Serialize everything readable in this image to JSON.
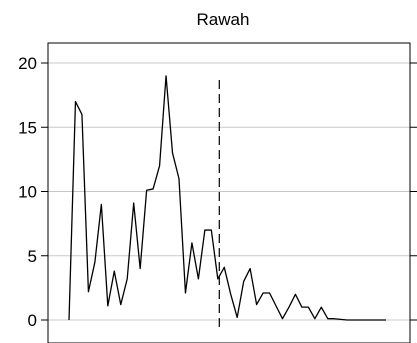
{
  "chart_data": {
    "type": "line",
    "title": "Rawah",
    "xlabel": "",
    "ylabel": "",
    "ylim": [
      -0.5,
      21.5
    ],
    "yticks": [
      0,
      5,
      10,
      15,
      20
    ],
    "grid": true,
    "x": [
      0,
      1,
      2,
      3,
      4,
      5,
      6,
      7,
      8,
      9,
      10,
      11,
      12,
      13,
      14,
      15,
      16,
      17,
      18,
      19,
      20,
      21,
      22,
      23,
      24,
      25,
      26,
      27,
      28,
      29,
      30,
      31,
      32,
      33,
      34,
      35,
      36,
      37,
      38,
      39,
      40,
      41,
      42,
      43,
      44,
      45,
      46,
      47,
      48,
      49
    ],
    "series": [
      {
        "values": [
          0.0,
          17.0,
          16.0,
          2.2,
          4.5,
          9.0,
          1.1,
          3.8,
          1.2,
          3.2,
          9.1,
          4.0,
          10.1,
          10.2,
          12.0,
          19.0,
          13.0,
          11.0,
          2.1,
          6.0,
          3.2,
          7.0,
          7.0,
          3.2,
          4.1,
          2.0,
          0.2,
          3.0,
          4.0,
          1.2,
          2.1,
          2.1,
          1.1,
          0.1,
          1.0,
          2.0,
          1.0,
          1.0,
          0.1,
          1.0,
          0.1,
          0.1,
          0.05,
          0.0,
          0.0,
          0.0,
          0.0,
          0.0,
          0.0,
          0.0
        ]
      }
    ],
    "reference_line": {
      "x": 23,
      "style": "dashed"
    }
  }
}
